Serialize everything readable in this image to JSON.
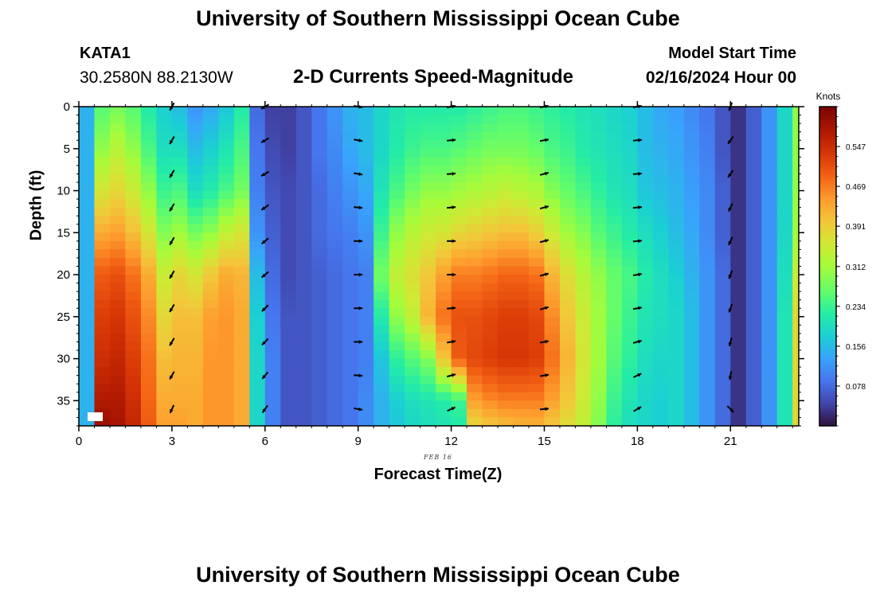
{
  "header": {
    "title": "University of Southern Mississippi Ocean Cube",
    "station_id": "KATA1",
    "coordinates": "30.2580N  88.2130W",
    "subtitle": "2-D Currents Speed-Magnitude",
    "model_start_label": "Model Start Time",
    "model_start_value": "02/16/2024 Hour 00"
  },
  "footer": {
    "title": "University of Southern Mississippi Ocean Cube"
  },
  "chart_data": {
    "type": "heatmap",
    "title": "2-D Currents Speed-Magnitude",
    "xlabel": "Forecast Time(Z)",
    "ylabel": "Depth (ft)",
    "date_tag": "FEB 16",
    "xlim": [
      0,
      23.2
    ],
    "ylim": [
      38,
      0
    ],
    "x_ticks": [
      0,
      3,
      6,
      9,
      12,
      15,
      18,
      21
    ],
    "y_ticks": [
      0,
      5,
      10,
      15,
      20,
      25,
      30,
      35
    ],
    "colorbar": {
      "units": "Knots",
      "range": [
        0.0,
        0.625
      ],
      "ticks": [
        0.078,
        0.156,
        0.234,
        0.312,
        0.391,
        0.469,
        0.547
      ],
      "tick_labels": [
        "0.078",
        "0.156",
        "0.234",
        "0.312",
        "0.391",
        "0.469",
        "0.547"
      ]
    },
    "depths_ft": [
      0,
      5,
      10,
      15,
      20,
      25,
      30,
      35,
      38
    ],
    "speed_columns": [
      {
        "hour": 0.0,
        "speeds": [
          0.15,
          0.15,
          0.15,
          0.15,
          0.15,
          0.15,
          0.15,
          0.15,
          0.15
        ]
      },
      {
        "hour": 0.5,
        "speeds": [
          0.26,
          0.3,
          0.36,
          0.43,
          0.5,
          0.53,
          0.55,
          0.58,
          0.6
        ]
      },
      {
        "hour": 1.0,
        "speeds": [
          0.28,
          0.33,
          0.38,
          0.44,
          0.51,
          0.54,
          0.56,
          0.58,
          0.59
        ]
      },
      {
        "hour": 1.5,
        "speeds": [
          0.26,
          0.3,
          0.35,
          0.41,
          0.48,
          0.51,
          0.53,
          0.55,
          0.56
        ]
      },
      {
        "hour": 2.0,
        "speeds": [
          0.22,
          0.25,
          0.3,
          0.36,
          0.43,
          0.46,
          0.48,
          0.49,
          0.5
        ]
      },
      {
        "hour": 2.5,
        "speeds": [
          0.18,
          0.2,
          0.24,
          0.29,
          0.35,
          0.38,
          0.41,
          0.43,
          0.44
        ]
      },
      {
        "hour": 3.0,
        "speeds": [
          0.16,
          0.2,
          0.25,
          0.31,
          0.38,
          0.41,
          0.42,
          0.43,
          0.44
        ]
      },
      {
        "hour": 3.5,
        "speeds": [
          0.12,
          0.16,
          0.2,
          0.28,
          0.36,
          0.41,
          0.42,
          0.43,
          0.43
        ]
      },
      {
        "hour": 4.0,
        "speeds": [
          0.14,
          0.18,
          0.22,
          0.3,
          0.4,
          0.44,
          0.45,
          0.45,
          0.45
        ]
      },
      {
        "hour": 4.5,
        "speeds": [
          0.17,
          0.21,
          0.25,
          0.34,
          0.43,
          0.45,
          0.45,
          0.45,
          0.45
        ]
      },
      {
        "hour": 5.0,
        "speeds": [
          0.22,
          0.25,
          0.28,
          0.36,
          0.42,
          0.43,
          0.43,
          0.43,
          0.43
        ]
      },
      {
        "hour": 5.5,
        "speeds": [
          0.08,
          0.09,
          0.1,
          0.12,
          0.16,
          0.18,
          0.19,
          0.19,
          0.19
        ]
      },
      {
        "hour": 6.0,
        "speeds": [
          0.04,
          0.05,
          0.06,
          0.07,
          0.08,
          0.09,
          0.1,
          0.1,
          0.1
        ]
      },
      {
        "hour": 6.5,
        "speeds": [
          0.04,
          0.04,
          0.05,
          0.05,
          0.05,
          0.06,
          0.06,
          0.06,
          0.06
        ]
      },
      {
        "hour": 7.0,
        "speeds": [
          0.06,
          0.06,
          0.06,
          0.06,
          0.06,
          0.06,
          0.06,
          0.06,
          0.06
        ]
      },
      {
        "hour": 7.5,
        "speeds": [
          0.09,
          0.09,
          0.08,
          0.08,
          0.07,
          0.07,
          0.07,
          0.07,
          0.07
        ]
      },
      {
        "hour": 8.0,
        "speeds": [
          0.12,
          0.11,
          0.1,
          0.09,
          0.08,
          0.08,
          0.08,
          0.08,
          0.08
        ]
      },
      {
        "hour": 8.5,
        "speeds": [
          0.15,
          0.14,
          0.12,
          0.1,
          0.09,
          0.09,
          0.09,
          0.09,
          0.09
        ]
      },
      {
        "hour": 9.0,
        "speeds": [
          0.16,
          0.16,
          0.14,
          0.12,
          0.1,
          0.1,
          0.1,
          0.11,
          0.11
        ]
      },
      {
        "hour": 9.5,
        "speeds": [
          0.19,
          0.19,
          0.21,
          0.24,
          0.28,
          0.22,
          0.17,
          0.15,
          0.15
        ]
      },
      {
        "hour": 10.0,
        "speeds": [
          0.21,
          0.22,
          0.25,
          0.3,
          0.34,
          0.3,
          0.23,
          0.18,
          0.17
        ]
      },
      {
        "hour": 10.5,
        "speeds": [
          0.22,
          0.24,
          0.28,
          0.33,
          0.37,
          0.34,
          0.26,
          0.2,
          0.19
        ]
      },
      {
        "hour": 11.0,
        "speeds": [
          0.22,
          0.25,
          0.3,
          0.35,
          0.4,
          0.42,
          0.29,
          0.21,
          0.2
        ]
      },
      {
        "hour": 11.5,
        "speeds": [
          0.22,
          0.25,
          0.3,
          0.36,
          0.44,
          0.48,
          0.4,
          0.22,
          0.21
        ]
      },
      {
        "hour": 12.0,
        "speeds": [
          0.22,
          0.26,
          0.31,
          0.38,
          0.47,
          0.51,
          0.5,
          0.24,
          0.22
        ]
      },
      {
        "hour": 12.5,
        "speeds": [
          0.23,
          0.27,
          0.32,
          0.39,
          0.47,
          0.51,
          0.52,
          0.44,
          0.38
        ]
      },
      {
        "hour": 13.0,
        "speeds": [
          0.24,
          0.28,
          0.33,
          0.4,
          0.48,
          0.52,
          0.53,
          0.46,
          0.4
        ]
      },
      {
        "hour": 13.5,
        "speeds": [
          0.25,
          0.28,
          0.34,
          0.41,
          0.49,
          0.53,
          0.54,
          0.47,
          0.41
        ]
      },
      {
        "hour": 14.0,
        "speeds": [
          0.25,
          0.28,
          0.33,
          0.41,
          0.49,
          0.53,
          0.54,
          0.47,
          0.42
        ]
      },
      {
        "hour": 14.5,
        "speeds": [
          0.24,
          0.27,
          0.32,
          0.39,
          0.48,
          0.52,
          0.53,
          0.47,
          0.42
        ]
      },
      {
        "hour": 15.0,
        "speeds": [
          0.23,
          0.25,
          0.29,
          0.35,
          0.42,
          0.46,
          0.48,
          0.44,
          0.4
        ]
      },
      {
        "hour": 15.5,
        "speeds": [
          0.22,
          0.24,
          0.27,
          0.31,
          0.37,
          0.4,
          0.42,
          0.4,
          0.37
        ]
      },
      {
        "hour": 16.0,
        "speeds": [
          0.21,
          0.22,
          0.25,
          0.29,
          0.33,
          0.35,
          0.36,
          0.35,
          0.34
        ]
      },
      {
        "hour": 16.5,
        "speeds": [
          0.2,
          0.21,
          0.23,
          0.26,
          0.3,
          0.31,
          0.31,
          0.3,
          0.29
        ]
      },
      {
        "hour": 17.0,
        "speeds": [
          0.19,
          0.2,
          0.21,
          0.24,
          0.27,
          0.27,
          0.26,
          0.24,
          0.23
        ]
      },
      {
        "hour": 17.5,
        "speeds": [
          0.18,
          0.19,
          0.2,
          0.22,
          0.25,
          0.24,
          0.23,
          0.21,
          0.2
        ]
      },
      {
        "hour": 18.0,
        "speeds": [
          0.16,
          0.16,
          0.17,
          0.2,
          0.22,
          0.21,
          0.2,
          0.19,
          0.19
        ]
      },
      {
        "hour": 18.5,
        "speeds": [
          0.14,
          0.15,
          0.16,
          0.18,
          0.2,
          0.2,
          0.19,
          0.18,
          0.18
        ]
      },
      {
        "hour": 19.0,
        "speeds": [
          0.13,
          0.14,
          0.15,
          0.16,
          0.18,
          0.19,
          0.19,
          0.19,
          0.19
        ]
      },
      {
        "hour": 19.5,
        "speeds": [
          0.11,
          0.12,
          0.13,
          0.14,
          0.15,
          0.16,
          0.16,
          0.16,
          0.16
        ]
      },
      {
        "hour": 20.0,
        "speeds": [
          0.09,
          0.1,
          0.11,
          0.11,
          0.12,
          0.12,
          0.12,
          0.12,
          0.12
        ]
      },
      {
        "hour": 20.5,
        "speeds": [
          0.06,
          0.06,
          0.07,
          0.07,
          0.08,
          0.08,
          0.08,
          0.08,
          0.08
        ]
      },
      {
        "hour": 21.0,
        "speeds": [
          0.03,
          0.03,
          0.03,
          0.03,
          0.03,
          0.03,
          0.03,
          0.03,
          0.03
        ]
      },
      {
        "hour": 21.5,
        "speeds": [
          0.07,
          0.07,
          0.07,
          0.07,
          0.07,
          0.07,
          0.07,
          0.07,
          0.07
        ]
      },
      {
        "hour": 22.0,
        "speeds": [
          0.12,
          0.12,
          0.12,
          0.12,
          0.12,
          0.12,
          0.12,
          0.12,
          0.12
        ]
      },
      {
        "hour": 22.5,
        "speeds": [
          0.19,
          0.19,
          0.19,
          0.19,
          0.2,
          0.21,
          0.21,
          0.21,
          0.21
        ]
      },
      {
        "hour": 23.0,
        "speeds": [
          0.3,
          0.3,
          0.3,
          0.31,
          0.35,
          0.38,
          0.38,
          0.38,
          0.38
        ]
      }
    ],
    "vector_hours": [
      3,
      6,
      9,
      12,
      15,
      18,
      21
    ],
    "vector_depths_ft": [
      0,
      4,
      8,
      12,
      16,
      20,
      24,
      28,
      32,
      36
    ],
    "vector_directions_deg": [
      [
        210,
        210,
        210,
        210,
        210,
        210,
        210,
        210,
        210,
        205
      ],
      [
        240,
        240,
        240,
        235,
        230,
        230,
        225,
        225,
        220,
        215
      ],
      [
        100,
        100,
        100,
        95,
        90,
        90,
        90,
        90,
        95,
        100
      ],
      [
        80,
        85,
        85,
        85,
        90,
        90,
        85,
        80,
        75,
        65
      ],
      [
        80,
        80,
        75,
        75,
        75,
        75,
        75,
        80,
        80,
        85
      ],
      [
        80,
        85,
        85,
        85,
        85,
        80,
        80,
        75,
        65,
        60
      ],
      [
        200,
        215,
        215,
        205,
        205,
        200,
        200,
        195,
        190,
        135
      ]
    ]
  }
}
